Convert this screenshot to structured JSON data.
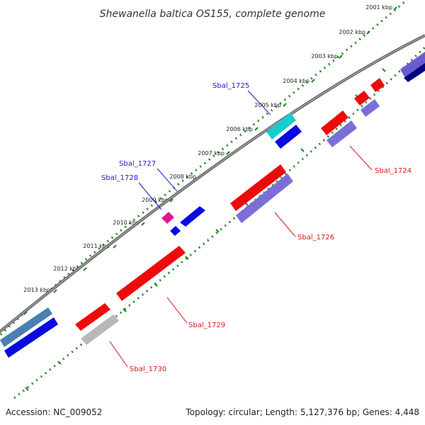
{
  "title": "Shewanella baltica OS155, complete genome",
  "footer": {
    "accession": "Accession: NC_009052",
    "summary": "Topology: circular; Length: 5,127,376 bp; Genes: 4,448"
  },
  "ticks": [
    "2001 kbp",
    "2002 kbp",
    "2003 kbp",
    "2004 kbp",
    "2005 kbp",
    "2006 kbp",
    "2007 kbp",
    "2008 kbp",
    "2009 kbp",
    "2010 kbp",
    "2011 kbp",
    "2012 kbp",
    "2013 kbp"
  ],
  "gene_labels": {
    "sbal_1725": "Sbal_1725",
    "sbal_1727": "Sbal_1727",
    "sbal_1728": "Sbal_1728",
    "sbal_1724": "Sbal_1724",
    "sbal_1726": "Sbal_1726",
    "sbal_1729": "Sbal_1729",
    "sbal_1730": "Sbal_1730"
  },
  "colors": {
    "backbone": "#808080",
    "tick_dots": "#1a8a1a",
    "forward_cds": "#0000ee",
    "reverse_cds": "#ee0000",
    "reverse_feature": "#7b6fd6",
    "label_forward": "#1a1ad6",
    "label_reverse": "#d61a1a"
  }
}
